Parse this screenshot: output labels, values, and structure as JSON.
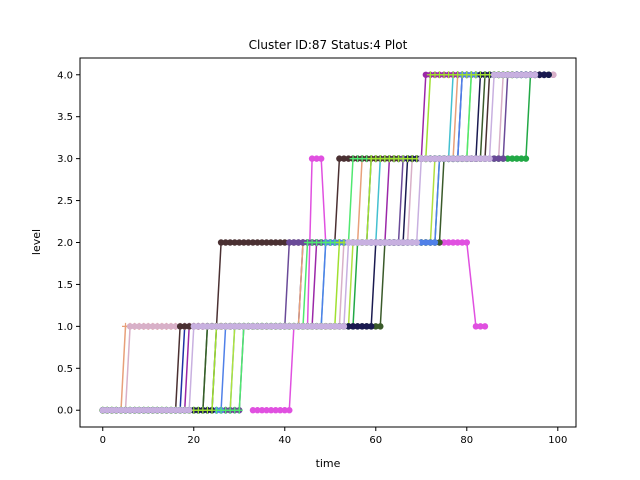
{
  "chart_data": {
    "type": "line",
    "title": "Cluster ID:87 Status:4 Plot",
    "xlabel": "time",
    "ylabel": "level",
    "xlim": [
      -5,
      104
    ],
    "ylim": [
      -0.2,
      4.2
    ],
    "xticks": [
      0,
      20,
      40,
      60,
      80,
      100
    ],
    "xtick_labels": [
      "0",
      "20",
      "40",
      "60",
      "80",
      "100"
    ],
    "yticks": [
      0,
      0.5,
      1,
      1.5,
      2,
      2.5,
      3,
      3.5,
      4
    ],
    "ytick_labels": [
      "0.0",
      "0.5",
      "1.0",
      "1.5",
      "2.0",
      "2.5",
      "3.0",
      "3.5",
      "4.0"
    ],
    "grid": false,
    "series": [
      {
        "color": "#9b27a8",
        "marker": "circle",
        "t1": 19,
        "t2": 47,
        "t3": 63,
        "t4": 71,
        "end": 99
      },
      {
        "color": "#1f2fa6",
        "marker": "plus",
        "t1": 18,
        "t2": 44,
        "t3": 59,
        "t4": 79,
        "end": 97
      },
      {
        "color": "#e8a07a",
        "marker": "plus",
        "t1": 5,
        "t2": 44,
        "t3": 57,
        "t4": 78,
        "end": 96
      },
      {
        "color": "#d8b0c8",
        "marker": "circle",
        "t1": 6,
        "t2": 53,
        "t3": 68,
        "t4": 88,
        "end": 99
      },
      {
        "color": "#4a3032",
        "marker": "circle",
        "t1": 17,
        "t2": 26,
        "t3": 52,
        "t4": 85,
        "end": 98
      },
      {
        "color": "#e050e0",
        "marker": "circle",
        "t1": 33,
        "t2": 48,
        "t3": 46,
        "t4": 48,
        "end": 84,
        "shape": "special"
      },
      {
        "color": "#21a845",
        "marker": "circle",
        "t1": 23,
        "t2": 56,
        "t3": 74,
        "t4": 94,
        "end": 98
      },
      {
        "color": "#43c0d0",
        "marker": "plus",
        "t1": 29,
        "t2": 49,
        "t3": 61,
        "t4": 77,
        "end": 93
      },
      {
        "color": "#b0e040",
        "marker": "circle",
        "t1": 29,
        "t2": 55,
        "t3": 73,
        "t4": 81,
        "end": 92
      },
      {
        "color": "#3a5a2a",
        "marker": "circle",
        "t1": 23,
        "t2": 62,
        "t3": 75,
        "t4": 84,
        "end": 96
      },
      {
        "color": "#6a4a98",
        "marker": "circle",
        "t1": 31,
        "t2": 41,
        "t3": 66,
        "t4": 89,
        "end": 97
      },
      {
        "color": "#5080e8",
        "marker": "circle",
        "t1": 27,
        "t2": 49,
        "t3": 74,
        "t4": 79,
        "end": 95
      },
      {
        "color": "#50e870",
        "marker": "plus",
        "t1": 31,
        "t2": 45,
        "t3": 55,
        "t4": 81,
        "end": 89
      },
      {
        "color": "#1a1a50",
        "marker": "circle",
        "t1": 25,
        "t2": 60,
        "t3": 67,
        "t4": 83,
        "end": 98
      },
      {
        "color": "#a0e030",
        "marker": "plus",
        "t1": 25,
        "t2": 52,
        "t3": 59,
        "t4": 72,
        "end": 90
      },
      {
        "color": "#c8b0e0",
        "marker": "circle",
        "t1": 20,
        "t2": 54,
        "t3": 70,
        "t4": 86,
        "end": 95
      }
    ]
  }
}
